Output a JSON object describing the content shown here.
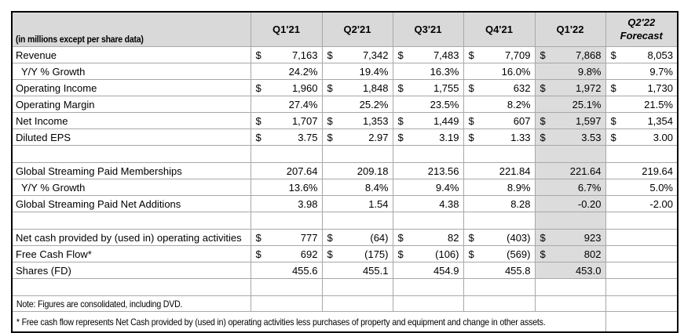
{
  "colors": {
    "header_bg": "#d9d9d9",
    "highlight_bg": "#dcdcdc",
    "grid_line": "#a8a8a8",
    "outer_border": "#000000",
    "text": "#000000"
  },
  "chart_data": {
    "type": "table",
    "subtitle": "(in millions except per share data)",
    "columns": [
      {
        "label": "Q1'21"
      },
      {
        "label": "Q2'21"
      },
      {
        "label": "Q3'21"
      },
      {
        "label": "Q4'21"
      },
      {
        "label": "Q1'22",
        "highlight": true
      },
      {
        "label": "Q2'22",
        "label2": "Forecast",
        "forecast": true
      }
    ],
    "highlight_column_index": 4,
    "rows": [
      {
        "label": "Revenue",
        "cells": [
          [
            "$",
            "7,163"
          ],
          [
            "$",
            "7,342"
          ],
          [
            "$",
            "7,483"
          ],
          [
            "$",
            "7,709"
          ],
          [
            "$",
            "7,868"
          ],
          [
            "$",
            "8,053"
          ]
        ]
      },
      {
        "label": "Y/Y % Growth",
        "indent": true,
        "cells": [
          [
            null,
            "24.2%"
          ],
          [
            null,
            "19.4%"
          ],
          [
            null,
            "16.3%"
          ],
          [
            null,
            "16.0%"
          ],
          [
            null,
            "9.8%"
          ],
          [
            null,
            "9.7%"
          ]
        ]
      },
      {
        "label": "Operating Income",
        "cells": [
          [
            "$",
            "1,960"
          ],
          [
            "$",
            "1,848"
          ],
          [
            "$",
            "1,755"
          ],
          [
            "$",
            "632"
          ],
          [
            "$",
            "1,972"
          ],
          [
            "$",
            "1,730"
          ]
        ]
      },
      {
        "label": "Operating Margin",
        "cells": [
          [
            null,
            "27.4%"
          ],
          [
            null,
            "25.2%"
          ],
          [
            null,
            "23.5%"
          ],
          [
            null,
            "8.2%"
          ],
          [
            null,
            "25.1%"
          ],
          [
            null,
            "21.5%"
          ]
        ]
      },
      {
        "label": "Net Income",
        "cells": [
          [
            "$",
            "1,707"
          ],
          [
            "$",
            "1,353"
          ],
          [
            "$",
            "1,449"
          ],
          [
            "$",
            "607"
          ],
          [
            "$",
            "1,597"
          ],
          [
            "$",
            "1,354"
          ]
        ]
      },
      {
        "label": "Diluted EPS",
        "cells": [
          [
            "$",
            "3.75"
          ],
          [
            "$",
            "2.97"
          ],
          [
            "$",
            "3.19"
          ],
          [
            "$",
            "1.33"
          ],
          [
            "$",
            "3.53"
          ],
          [
            "$",
            "3.00"
          ]
        ]
      },
      {
        "spacer": true
      },
      {
        "label": "Global Streaming Paid Memberships",
        "cells": [
          [
            null,
            "207.64"
          ],
          [
            null,
            "209.18"
          ],
          [
            null,
            "213.56"
          ],
          [
            null,
            "221.84"
          ],
          [
            null,
            "221.64"
          ],
          [
            null,
            "219.64"
          ]
        ]
      },
      {
        "label": "Y/Y % Growth",
        "indent": true,
        "cells": [
          [
            null,
            "13.6%"
          ],
          [
            null,
            "8.4%"
          ],
          [
            null,
            "9.4%"
          ],
          [
            null,
            "8.9%"
          ],
          [
            null,
            "6.7%"
          ],
          [
            null,
            "5.0%"
          ]
        ]
      },
      {
        "label": "Global Streaming Paid Net Additions",
        "cells": [
          [
            null,
            "3.98"
          ],
          [
            null,
            "1.54"
          ],
          [
            null,
            "4.38"
          ],
          [
            null,
            "8.28"
          ],
          [
            null,
            "-0.20"
          ],
          [
            null,
            "-2.00"
          ]
        ]
      },
      {
        "spacer": true
      },
      {
        "label": "Net cash provided by (used in) operating activities",
        "cells": [
          [
            "$",
            "777"
          ],
          [
            "$",
            "(64)"
          ],
          [
            "$",
            "82"
          ],
          [
            "$",
            "(403)"
          ],
          [
            "$",
            "923"
          ],
          null
        ]
      },
      {
        "label": "Free Cash Flow*",
        "cells": [
          [
            "$",
            "692"
          ],
          [
            "$",
            "(175)"
          ],
          [
            "$",
            "(106)"
          ],
          [
            "$",
            "(569)"
          ],
          [
            "$",
            "802"
          ],
          null
        ]
      },
      {
        "label": "Shares (FD)",
        "cells": [
          [
            null,
            "455.6"
          ],
          [
            null,
            "455.1"
          ],
          [
            null,
            "454.9"
          ],
          [
            null,
            "455.8"
          ],
          [
            null,
            "453.0"
          ],
          null
        ]
      }
    ],
    "note": "Note: Figures are consolidated, including DVD.",
    "footnote": "* Free cash flow represents Net Cash provided by (used in) operating activities less purchases of property and equipment and change in other assets."
  }
}
